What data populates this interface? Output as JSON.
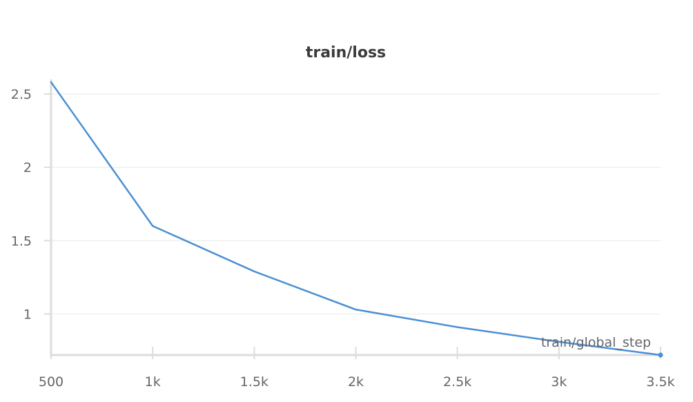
{
  "chart_data": {
    "type": "line",
    "title": "train/loss",
    "xlabel": "train/global_step",
    "ylabel": "",
    "x": [
      500,
      1000,
      1500,
      2000,
      2500,
      3000,
      3500
    ],
    "series": [
      {
        "values": [
          2.58,
          1.6,
          1.29,
          1.03,
          0.91,
          0.81,
          0.72
        ],
        "color": "#4a8fd4"
      }
    ],
    "xlim": [
      500,
      3500
    ],
    "ylim": [
      0.72,
      2.58
    ],
    "x_ticks": [
      500,
      1000,
      1500,
      2000,
      2500,
      3000,
      3500
    ],
    "x_tick_labels": [
      "500",
      "1k",
      "1.5k",
      "2k",
      "2.5k",
      "3k",
      "3.5k"
    ],
    "y_ticks": [
      1,
      1.5,
      2,
      2.5
    ],
    "y_tick_labels": [
      "1",
      "1.5",
      "2",
      "2.5"
    ],
    "grid": true,
    "legend": "none"
  }
}
